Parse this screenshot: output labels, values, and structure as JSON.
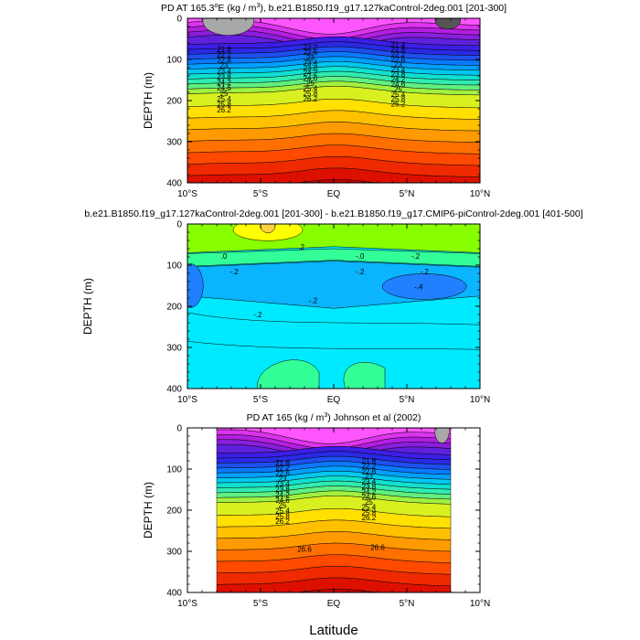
{
  "chart_data": [
    {
      "type": "contour",
      "title_parts": [
        "PD AT 165.3",
        "o",
        "E (kg / m",
        "3",
        "), b.e21.B1850.f19_g17.127kaControl-2deg.001 [201-300]"
      ],
      "ylabel": "DEPTH (m)",
      "xlim": [
        -10,
        10
      ],
      "ylim": [
        400,
        0
      ],
      "x_ticks": [
        "10°S",
        "5°S",
        "EQ",
        "5°N",
        "10°N"
      ],
      "y_ticks": [
        "0",
        "100",
        "200",
        "300",
        "400"
      ],
      "contour_levels": [
        "21.8",
        "22.2",
        "22.6",
        "23",
        "23.4",
        "23.8",
        "24.2",
        "24.6",
        "25",
        "25.4",
        "25.8",
        "26.2"
      ],
      "labels_left": [
        "21.8",
        "22.2",
        "22.6",
        "23",
        "23.4",
        "23.8",
        "24.2",
        "24.6",
        "25",
        "25.4",
        "25.8",
        "26.2"
      ],
      "labels_center": [
        "22.2",
        "22.6",
        "23",
        "23.4",
        "23.8",
        "24.2",
        "24.6",
        "25",
        "25.4",
        "25.8",
        "26.2"
      ],
      "labels_right": [
        "21.4",
        "21.8",
        "22.2",
        "22.6",
        "23",
        "23.4",
        "23.8",
        "24.2",
        "24.6",
        "25",
        "25.4",
        "25.8",
        "26.2"
      ]
    },
    {
      "type": "contour",
      "title": "b.e21.B1850.f19_g17.127kaControl-2deg.001 [201-300] - b.e21.B1850.f19_g17.CMIP6-piControl-2deg.001 [401-500]",
      "ylabel": "DEPTH (m)",
      "xlim": [
        -10,
        10
      ],
      "ylim": [
        400,
        0
      ],
      "x_ticks": [
        "10°S",
        "5°S",
        "EQ",
        "5°N",
        "10°N"
      ],
      "y_ticks": [
        "0",
        "100",
        "200",
        "300",
        "400"
      ],
      "contour_labels": [
        ".2",
        ".0",
        "-.0",
        "-.2",
        "-.2",
        "-.2",
        "-.2",
        "-.4",
        "-.2",
        "-.2"
      ]
    },
    {
      "type": "contour",
      "title_parts": [
        "PD AT 165 (kg / m",
        "3",
        ") Johnson et al (2002)"
      ],
      "ylabel": "DEPTH (m)",
      "xlabel": "Latitude",
      "xlim": [
        -10,
        10
      ],
      "ylim": [
        400,
        0
      ],
      "data_extent": [
        -8,
        8
      ],
      "x_ticks": [
        "10°S",
        "5°S",
        "EQ",
        "5°N",
        "10°N"
      ],
      "y_ticks": [
        "0",
        "100",
        "200",
        "300",
        "400"
      ],
      "labels_left": [
        "21.8",
        "22.2",
        "22.6",
        "23",
        "23.4",
        "23.8",
        "24.2",
        "24.6",
        "25",
        "25.4",
        "25.8",
        "26.2"
      ],
      "labels_right": [
        "21.8",
        "22.2",
        "22.6",
        "23",
        "23.4",
        "23.8",
        "24.2",
        "24.6",
        "25",
        "25.4",
        "25.8",
        "26.2"
      ],
      "labels_bottom": [
        "26.6",
        "26.6"
      ]
    }
  ]
}
